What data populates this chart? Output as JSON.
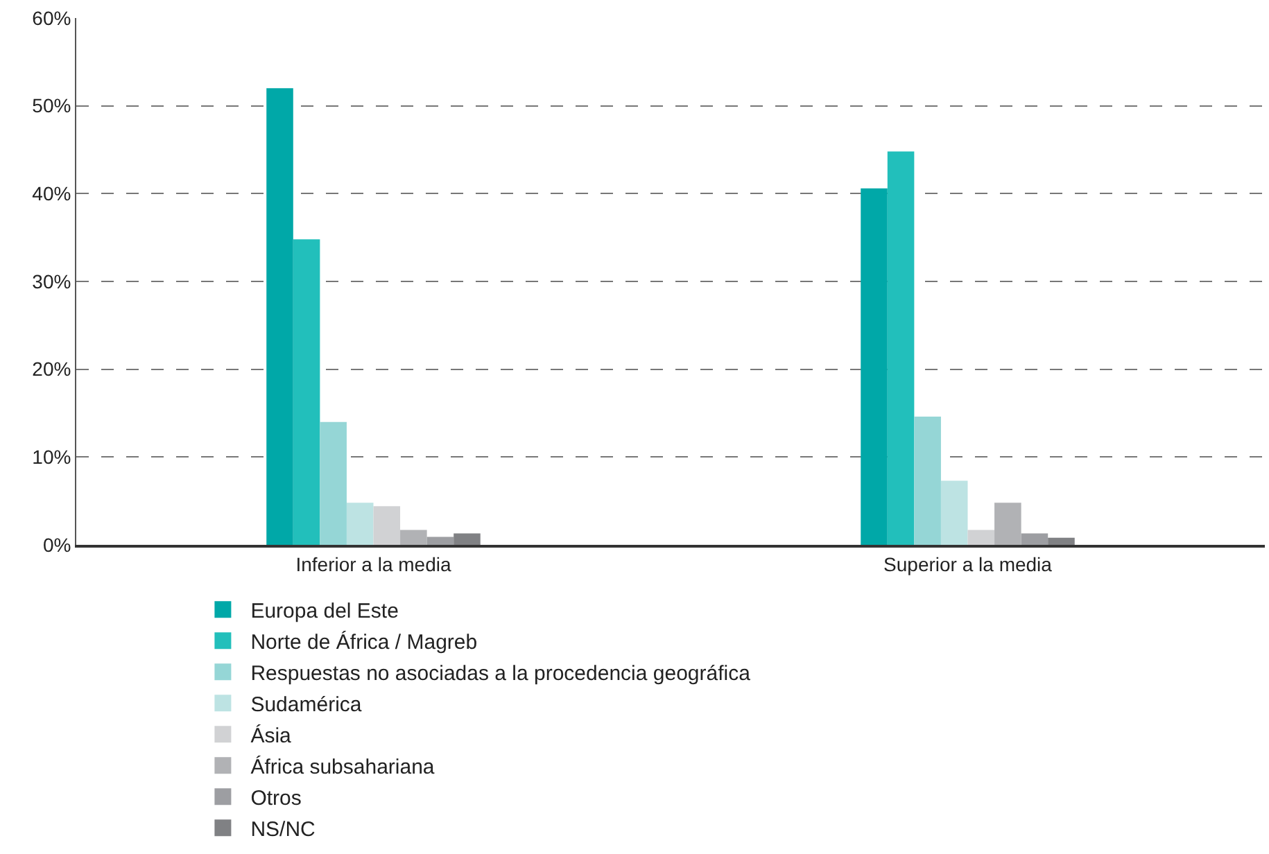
{
  "chart_data": {
    "type": "bar",
    "categories": [
      "Inferior a la media",
      "Superior a la media"
    ],
    "series": [
      {
        "name": "Europa del Este",
        "color": "#00a8a8",
        "values": [
          52,
          40.6
        ]
      },
      {
        "name": "Norte de África / Magreb",
        "color": "#22bfbb",
        "values": [
          34.8,
          44.8
        ]
      },
      {
        "name": "Respuestas no asociadas a la procedencia geográfica",
        "color": "#95d6d6",
        "values": [
          14.0,
          14.6
        ]
      },
      {
        "name": "Sudamérica",
        "color": "#bde3e3",
        "values": [
          4.8,
          7.3
        ]
      },
      {
        "name": "Ásia",
        "color": "#d1d2d4",
        "values": [
          4.4,
          1.7
        ]
      },
      {
        "name": "África subsahariana",
        "color": "#b1b2b5",
        "values": [
          1.7,
          4.8
        ]
      },
      {
        "name": "Otros",
        "color": "#9d9ea2",
        "values": [
          0.9,
          1.3
        ]
      },
      {
        "name": "NS/NC",
        "color": "#808184",
        "values": [
          1.3,
          0.8
        ]
      }
    ],
    "ylim": [
      0,
      60
    ],
    "yticks": [
      {
        "value": 0,
        "label": "0%"
      },
      {
        "value": 10,
        "label": "10%"
      },
      {
        "value": 20,
        "label": "20%"
      },
      {
        "value": 30,
        "label": "30%"
      },
      {
        "value": 40,
        "label": "40%"
      },
      {
        "value": 50,
        "label": "50%"
      },
      {
        "value": 60,
        "label": "60%"
      }
    ],
    "grid": "y",
    "legend": "bottom"
  }
}
